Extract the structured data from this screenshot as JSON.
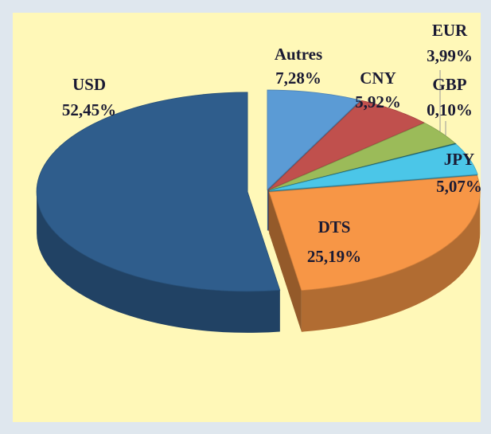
{
  "chart_data": {
    "type": "pie",
    "categories": [
      "Autres",
      "CNY",
      "EUR",
      "GBP",
      "JPY",
      "DTS",
      "USD"
    ],
    "values": [
      7.28,
      5.92,
      3.99,
      0.1,
      5.07,
      25.19,
      52.45
    ],
    "value_labels": [
      "7,28%",
      "5,92%",
      "3,99%",
      "0,10%",
      "5,07%",
      "25,19%",
      "52,45%"
    ],
    "colors": [
      "#5b9bd5",
      "#c0504d",
      "#9bbb59",
      "#1f6f7f",
      "#4bc6e8",
      "#f79646",
      "#2f5d8c"
    ]
  }
}
